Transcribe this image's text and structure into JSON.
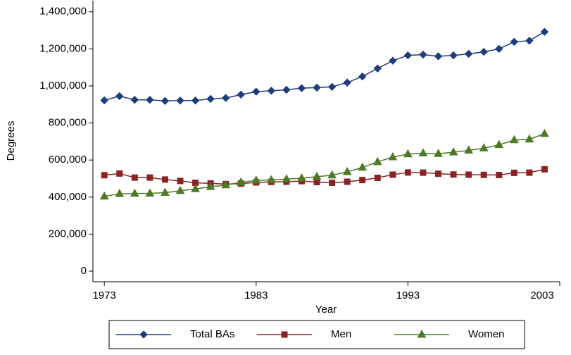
{
  "chart_data": {
    "type": "line",
    "x_label": "Year",
    "y_label": "Degrees",
    "x": [
      1973,
      1974,
      1975,
      1976,
      1977,
      1978,
      1979,
      1980,
      1981,
      1982,
      1983,
      1984,
      1985,
      1986,
      1987,
      1988,
      1989,
      1990,
      1991,
      1992,
      1993,
      1994,
      1995,
      1996,
      1997,
      1998,
      1999,
      2000,
      2001,
      2002
    ],
    "series": [
      {
        "name": "Total BAs",
        "color": "#1f3d7a",
        "marker": "diamond",
        "values": [
          922000,
          945000,
          925000,
          925000,
          919000,
          921000,
          921000,
          930000,
          935000,
          953000,
          969000,
          974000,
          979000,
          988000,
          991000,
          995000,
          1018000,
          1051000,
          1094000,
          1136000,
          1165000,
          1169000,
          1160000,
          1165000,
          1173000,
          1184000,
          1200000,
          1238000,
          1244000,
          1292000
        ]
      },
      {
        "name": "Men",
        "color": "#8b2323",
        "marker": "square",
        "values": [
          518000,
          527000,
          505000,
          505000,
          495000,
          487000,
          477000,
          474000,
          470000,
          473000,
          479000,
          482000,
          483000,
          486000,
          481000,
          477000,
          483000,
          492000,
          504000,
          521000,
          533000,
          532000,
          526000,
          522000,
          521000,
          520000,
          519000,
          531000,
          532000,
          550000
        ]
      },
      {
        "name": "Women",
        "color": "#4e7a27",
        "marker": "triangle",
        "values": [
          404000,
          418000,
          419000,
          420000,
          424000,
          434000,
          444000,
          456000,
          465000,
          480000,
          490000,
          492000,
          497000,
          502000,
          510000,
          518000,
          536000,
          560000,
          590000,
          616000,
          632000,
          637000,
          634000,
          642000,
          652000,
          664000,
          682000,
          708000,
          712000,
          742000
        ]
      }
    ],
    "xlim": [
      1972.25,
      2003
    ],
    "xticks": [
      1973,
      1983,
      1993,
      2003
    ],
    "ylim": [
      -57000,
      1460000
    ],
    "yticks": [
      0,
      {
        "value": 200000,
        "label": "200,000"
      },
      {
        "value": 400000,
        "label": "400,000"
      },
      {
        "value": 600000,
        "label": "600,000"
      },
      {
        "value": 800000,
        "label": "800,000"
      },
      {
        "value": 1000000,
        "label": "1,000,000"
      },
      {
        "value": 1200000,
        "label": "1,200,000"
      },
      {
        "value": 1400000,
        "label": "1,400,000"
      }
    ],
    "legend": "bottom"
  }
}
